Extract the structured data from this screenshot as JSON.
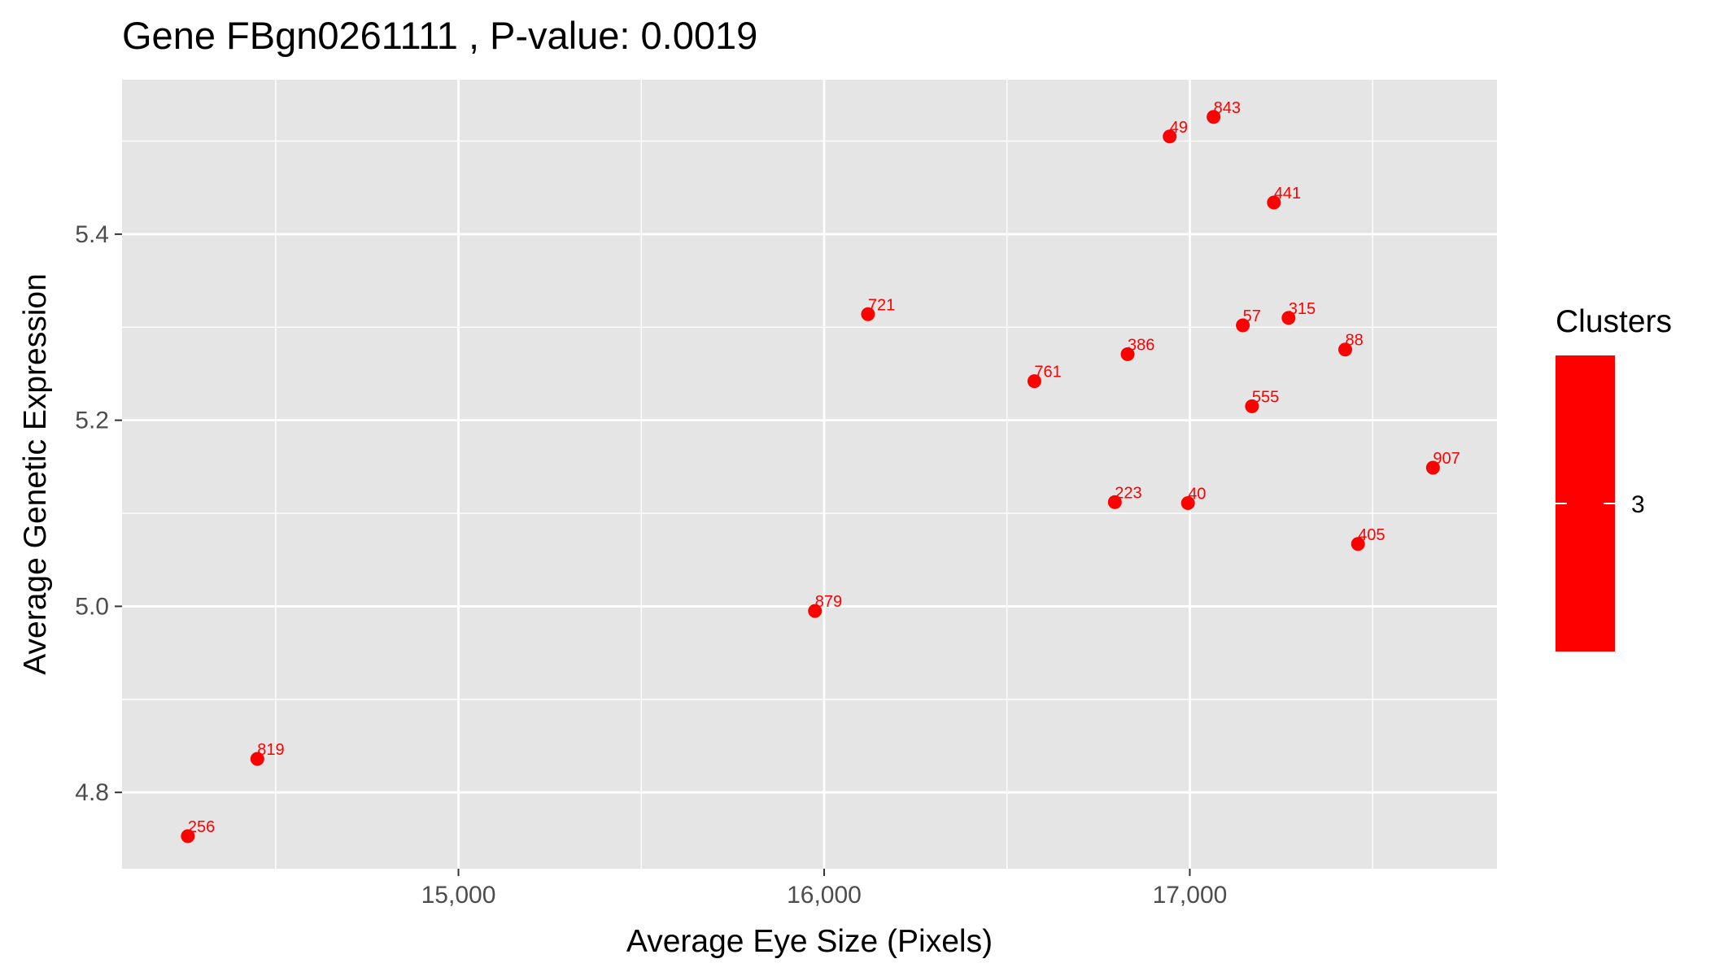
{
  "chart_data": {
    "type": "scatter",
    "title": "Gene FBgn0261111 , P-value: 0.0019",
    "xlabel": "Average Eye Size (Pixels)",
    "ylabel": "Average Genetic Expression",
    "xlim": [
      14080,
      17840
    ],
    "ylim": [
      4.718,
      5.566
    ],
    "x_major_ticks": [
      15000,
      16000,
      17000
    ],
    "x_minor_ticks": [
      14500,
      15500,
      16500,
      17500
    ],
    "x_tick_labels": [
      "15,000",
      "16,000",
      "17,000"
    ],
    "y_major_ticks": [
      4.8,
      5.0,
      5.2,
      5.4
    ],
    "y_minor_ticks": [
      4.9,
      5.1,
      5.3,
      5.5
    ],
    "y_tick_labels": [
      "4.8",
      "5.0",
      "5.2",
      "5.4"
    ],
    "grid": true,
    "background_color": "#e5e5e5",
    "point_color": "#ff0000",
    "legend": {
      "title": "Clusters",
      "placement": "right",
      "labels": [
        "3"
      ],
      "color": "#ff0000"
    },
    "points": [
      {
        "label": "843",
        "x": 17065,
        "y": 5.526
      },
      {
        "label": "49",
        "x": 16945,
        "y": 5.505
      },
      {
        "label": "441",
        "x": 17230,
        "y": 5.434
      },
      {
        "label": "721",
        "x": 16120,
        "y": 5.314
      },
      {
        "label": "315",
        "x": 17270,
        "y": 5.31
      },
      {
        "label": "57",
        "x": 17145,
        "y": 5.302
      },
      {
        "label": "88",
        "x": 17425,
        "y": 5.276
      },
      {
        "label": "386",
        "x": 16830,
        "y": 5.271
      },
      {
        "label": "761",
        "x": 16575,
        "y": 5.242
      },
      {
        "label": "555",
        "x": 17170,
        "y": 5.215
      },
      {
        "label": "907",
        "x": 17665,
        "y": 5.149
      },
      {
        "label": "223",
        "x": 16795,
        "y": 5.112
      },
      {
        "label": "40",
        "x": 16995,
        "y": 5.111
      },
      {
        "label": "405",
        "x": 17460,
        "y": 5.067
      },
      {
        "label": "879",
        "x": 15975,
        "y": 4.995
      },
      {
        "label": "819",
        "x": 14450,
        "y": 4.836
      },
      {
        "label": "256",
        "x": 14260,
        "y": 4.753
      }
    ]
  }
}
